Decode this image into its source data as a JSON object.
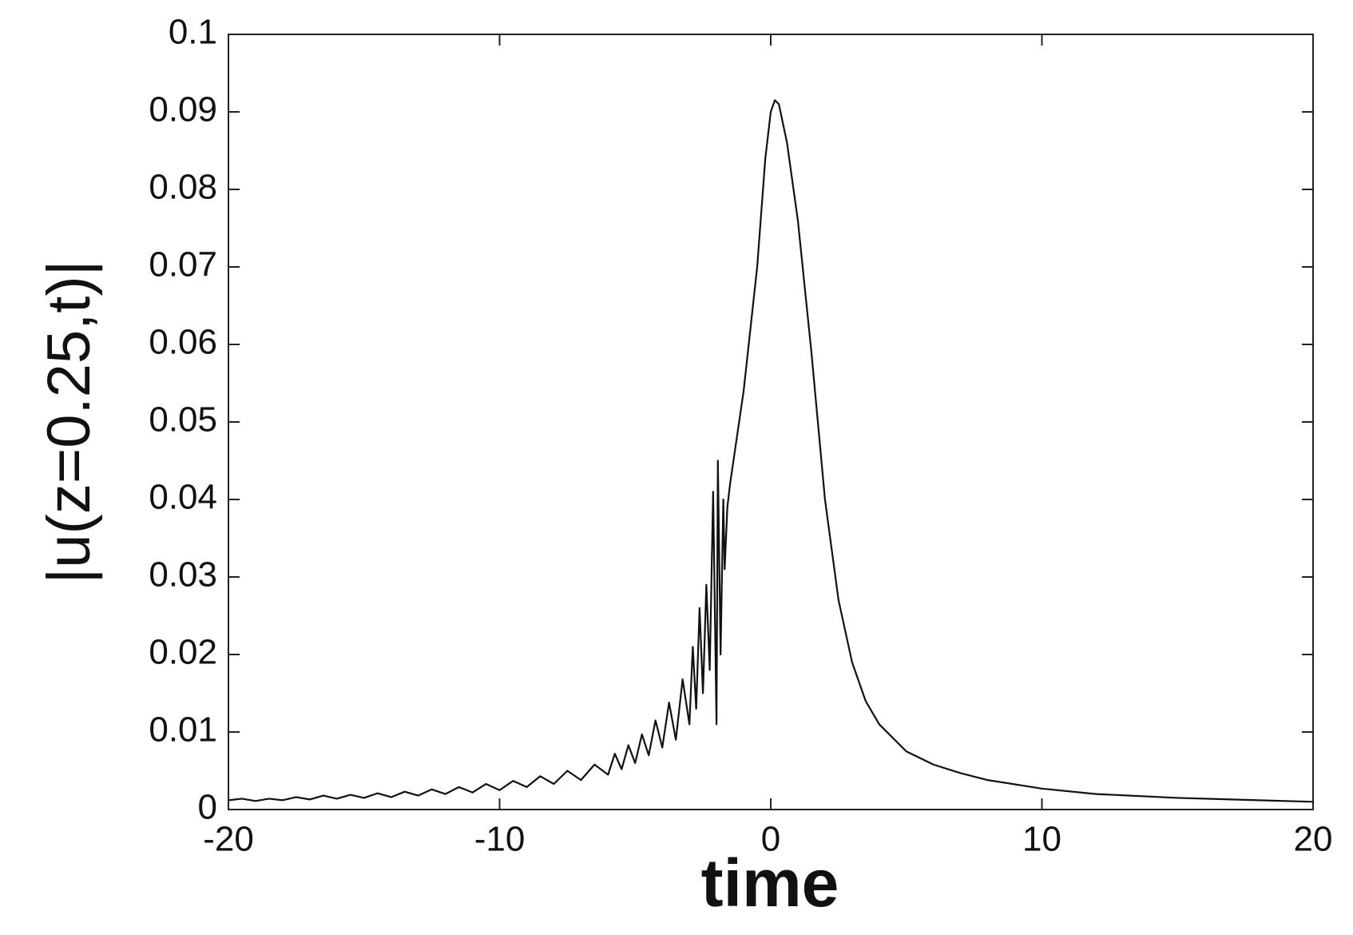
{
  "chart_data": {
    "type": "line",
    "xlabel": "time",
    "ylabel": "|u(z=0.25,t)|",
    "xlim": [
      -20,
      20
    ],
    "ylim": [
      0,
      0.1
    ],
    "xticks": [
      -20,
      -10,
      0,
      10,
      20
    ],
    "yticks": [
      0,
      0.01,
      0.02,
      0.03,
      0.04,
      0.05,
      0.06,
      0.07,
      0.08,
      0.09,
      0.1
    ],
    "series": [
      {
        "color": "#111111",
        "x": [
          -20,
          -19.5,
          -19,
          -18.5,
          -18,
          -17.5,
          -17,
          -16.5,
          -16,
          -15.5,
          -15,
          -14.5,
          -14,
          -13.5,
          -13,
          -12.5,
          -12,
          -11.5,
          -11,
          -10.5,
          -10,
          -9.5,
          -9,
          -8.5,
          -8,
          -7.5,
          -7,
          -6.5,
          -6,
          -5.75,
          -5.5,
          -5.25,
          -5,
          -4.75,
          -4.5,
          -4.25,
          -4,
          -3.75,
          -3.5,
          -3.25,
          -3,
          -2.875,
          -2.75,
          -2.625,
          -2.5,
          -2.375,
          -2.25,
          -2.125,
          -2,
          -1.95,
          -1.85,
          -1.75,
          -1.7,
          -1.6,
          -1.5,
          -1,
          -0.5,
          -0.2,
          0,
          0.15,
          0.3,
          0.6,
          1,
          1.5,
          2,
          2.5,
          3,
          3.5,
          4,
          5,
          6,
          7,
          8,
          10,
          12,
          15,
          18,
          20
        ],
        "values": [
          0.0012,
          0.0014,
          0.0011,
          0.0014,
          0.0012,
          0.0016,
          0.0013,
          0.0018,
          0.0014,
          0.0019,
          0.0015,
          0.0021,
          0.0016,
          0.0023,
          0.0018,
          0.0026,
          0.002,
          0.0029,
          0.0022,
          0.0033,
          0.0025,
          0.0037,
          0.0029,
          0.0043,
          0.0033,
          0.005,
          0.0038,
          0.0058,
          0.0045,
          0.0072,
          0.0052,
          0.0083,
          0.006,
          0.0097,
          0.007,
          0.0115,
          0.008,
          0.0138,
          0.009,
          0.0168,
          0.011,
          0.021,
          0.013,
          0.026,
          0.015,
          0.029,
          0.018,
          0.041,
          0.011,
          0.045,
          0.02,
          0.04,
          0.031,
          0.039,
          0.042,
          0.054,
          0.07,
          0.084,
          0.09,
          0.0915,
          0.091,
          0.086,
          0.076,
          0.059,
          0.04,
          0.027,
          0.019,
          0.014,
          0.011,
          0.0075,
          0.0058,
          0.0047,
          0.0038,
          0.0027,
          0.002,
          0.0015,
          0.0012,
          0.001
        ]
      }
    ]
  }
}
